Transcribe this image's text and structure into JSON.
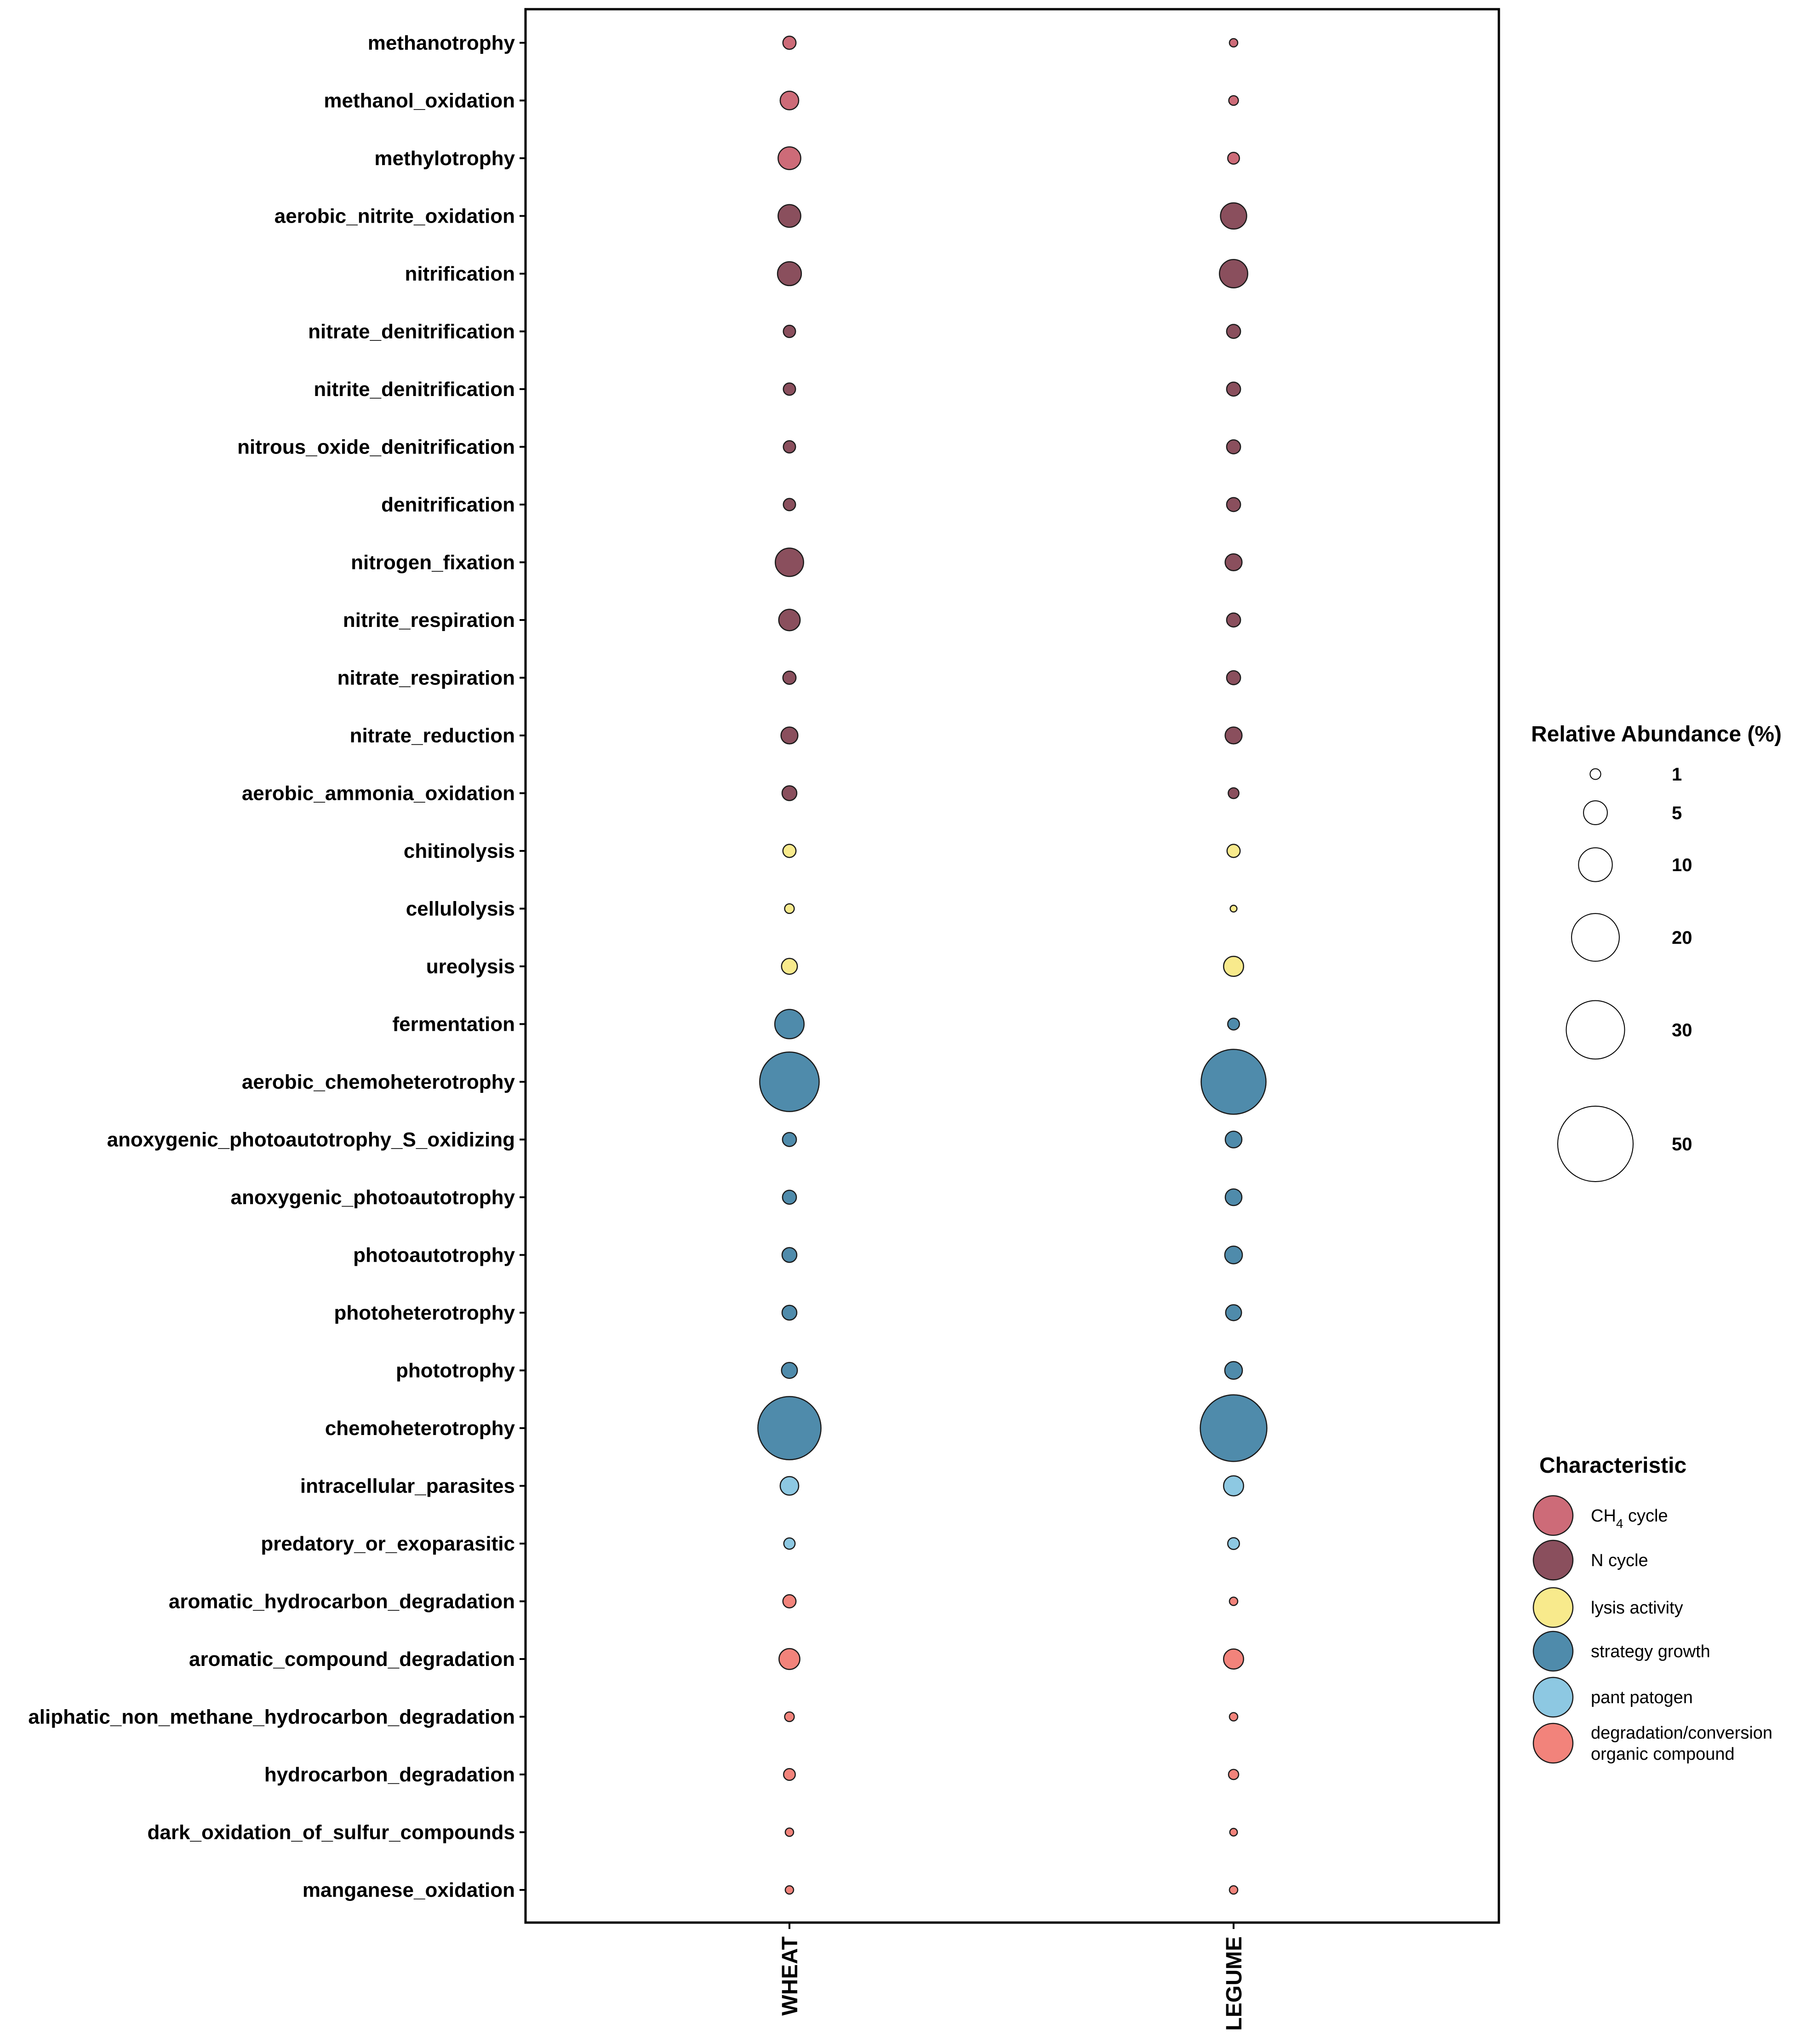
{
  "chart_data": {
    "type": "bubble",
    "columns": [
      "WHEAT",
      "LEGUME"
    ],
    "rows": [
      {
        "label": "methanotrophy",
        "group": "ch4",
        "values": [
          1.5,
          0.6
        ]
      },
      {
        "label": "methanol_oxidation",
        "group": "ch4",
        "values": [
          3.0,
          0.8
        ]
      },
      {
        "label": "methylotrophy",
        "group": "ch4",
        "values": [
          4.5,
          1.2
        ]
      },
      {
        "label": "aerobic_nitrite_oxidation",
        "group": "n",
        "values": [
          4.5,
          6.0
        ]
      },
      {
        "label": "nitrification",
        "group": "n",
        "values": [
          5.0,
          7.0
        ]
      },
      {
        "label": "nitrate_denitrification",
        "group": "n",
        "values": [
          1.3,
          1.7
        ]
      },
      {
        "label": "nitrite_denitrification",
        "group": "n",
        "values": [
          1.3,
          1.7
        ]
      },
      {
        "label": "nitrous_oxide_denitrification",
        "group": "n",
        "values": [
          1.3,
          1.7
        ]
      },
      {
        "label": "denitrification",
        "group": "n",
        "values": [
          1.3,
          1.7
        ]
      },
      {
        "label": "nitrogen_fixation",
        "group": "n",
        "values": [
          7.0,
          2.5
        ]
      },
      {
        "label": "nitrite_respiration",
        "group": "n",
        "values": [
          4.0,
          1.7
        ]
      },
      {
        "label": "nitrate_respiration",
        "group": "n",
        "values": [
          1.5,
          1.7
        ]
      },
      {
        "label": "nitrate_reduction",
        "group": "n",
        "values": [
          2.5,
          2.5
        ]
      },
      {
        "label": "aerobic_ammonia_oxidation",
        "group": "n",
        "values": [
          1.9,
          1.0
        ]
      },
      {
        "label": "chitinolysis",
        "group": "lysis",
        "values": [
          1.5,
          1.5
        ]
      },
      {
        "label": "cellulolysis",
        "group": "lysis",
        "values": [
          0.8,
          0.4
        ]
      },
      {
        "label": "ureolysis",
        "group": "lysis",
        "values": [
          2.2,
          3.5
        ]
      },
      {
        "label": "fermentation",
        "group": "growth",
        "values": [
          7.5,
          1.2
        ]
      },
      {
        "label": "aerobic_chemoheterotrophy",
        "group": "growth",
        "values": [
          31.0,
          37.0
        ]
      },
      {
        "label": "anoxygenic_photoautotrophy_S_oxidizing",
        "group": "growth",
        "values": [
          1.7,
          2.4
        ]
      },
      {
        "label": "anoxygenic_photoautotrophy",
        "group": "growth",
        "values": [
          1.7,
          2.4
        ]
      },
      {
        "label": "photoautotrophy",
        "group": "growth",
        "values": [
          1.9,
          2.7
        ]
      },
      {
        "label": "photoheterotrophy",
        "group": "growth",
        "values": [
          1.9,
          2.2
        ]
      },
      {
        "label": "phototrophy",
        "group": "growth",
        "values": [
          2.2,
          2.7
        ]
      },
      {
        "label": "chemoheterotrophy",
        "group": "growth",
        "values": [
          35.0,
          39.0
        ]
      },
      {
        "label": "intracellular_parasites",
        "group": "pathogen",
        "values": [
          3.0,
          3.5
        ]
      },
      {
        "label": "predatory_or_exoparasitic",
        "group": "pathogen",
        "values": [
          1.1,
          1.2
        ]
      },
      {
        "label": "aromatic_hydrocarbon_degradation",
        "group": "degradation",
        "values": [
          1.5,
          0.6
        ]
      },
      {
        "label": "aromatic_compound_degradation",
        "group": "degradation",
        "values": [
          3.8,
          3.5
        ]
      },
      {
        "label": "aliphatic_non_methane_hydrocarbon_degradation",
        "group": "degradation",
        "values": [
          0.8,
          0.6
        ]
      },
      {
        "label": "hydrocarbon_degradation",
        "group": "degradation",
        "values": [
          1.2,
          0.9
        ]
      },
      {
        "label": "dark_oxidation_of_sulfur_compounds",
        "group": "degradation",
        "values": [
          0.6,
          0.5
        ]
      },
      {
        "label": "manganese_oxidation",
        "group": "degradation",
        "values": [
          0.6,
          0.6
        ]
      }
    ],
    "size_legend": {
      "title": "Relative Abundance (%)",
      "breaks": [
        1,
        5,
        10,
        20,
        30,
        50
      ],
      "labels": [
        "1",
        "5",
        "10",
        "20",
        "30",
        "50"
      ]
    },
    "color_legend": {
      "title": "Characteristic",
      "entries": [
        {
          "key": "ch4",
          "label": "CH",
          "sub": "4",
          "suffix": " cycle",
          "color": "#CD6B78"
        },
        {
          "key": "n",
          "label": "N cycle",
          "color": "#8A4F5D"
        },
        {
          "key": "lysis",
          "label": "lysis activity",
          "color": "#F8EA8C"
        },
        {
          "key": "growth",
          "label": "strategy growth",
          "color": "#4F8BAB"
        },
        {
          "key": "pathogen",
          "label": "pant patogen",
          "color": "#8DC8E2"
        },
        {
          "key": "degradation",
          "label": "degradation/conversion",
          "label2": "organic compound",
          "color": "#F2837B"
        }
      ]
    }
  }
}
